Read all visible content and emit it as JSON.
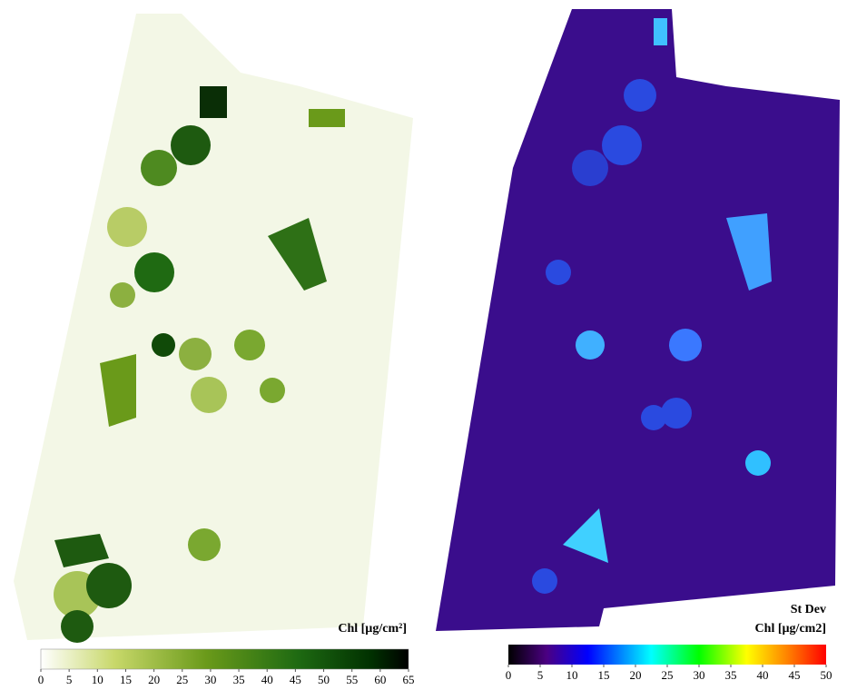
{
  "left_map": {
    "colorbar": {
      "label": "Chl [µg/cm²]",
      "range": [
        0,
        65
      ],
      "ticks": [
        0,
        5,
        10,
        15,
        20,
        25,
        30,
        35,
        40,
        45,
        50,
        55,
        60,
        65
      ]
    }
  },
  "right_map": {
    "colorbar": {
      "title": "St Dev",
      "label": "Chl [µg/cm2]",
      "range": [
        0,
        50
      ],
      "ticks": [
        0,
        5,
        10,
        15,
        20,
        25,
        30,
        35,
        40,
        45,
        50
      ]
    }
  }
}
